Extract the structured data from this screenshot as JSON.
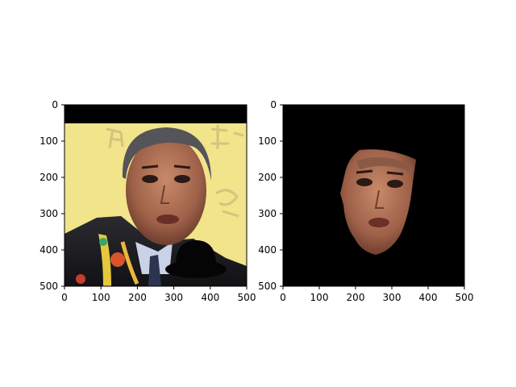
{
  "chart_data": [
    {
      "type": "image",
      "title": "",
      "xlabel": "",
      "ylabel": "",
      "xlim": [
        0,
        500
      ],
      "ylim": [
        500,
        0
      ],
      "xticks": [
        0,
        100,
        200,
        300,
        400,
        500
      ],
      "yticks": [
        0,
        100,
        200,
        300,
        400,
        500
      ],
      "content": "photo-with-hat",
      "colors": {
        "background": "#f1e48a",
        "top_band": "#000000"
      }
    },
    {
      "type": "image",
      "title": "",
      "xlabel": "",
      "ylabel": "",
      "xlim": [
        0,
        500
      ],
      "ylim": [
        500,
        0
      ],
      "xticks": [
        0,
        100,
        200,
        300,
        400,
        500
      ],
      "yticks": [
        0,
        100,
        200,
        300,
        400,
        500
      ],
      "content": "segmented-face",
      "colors": {
        "background": "#000000"
      }
    }
  ]
}
